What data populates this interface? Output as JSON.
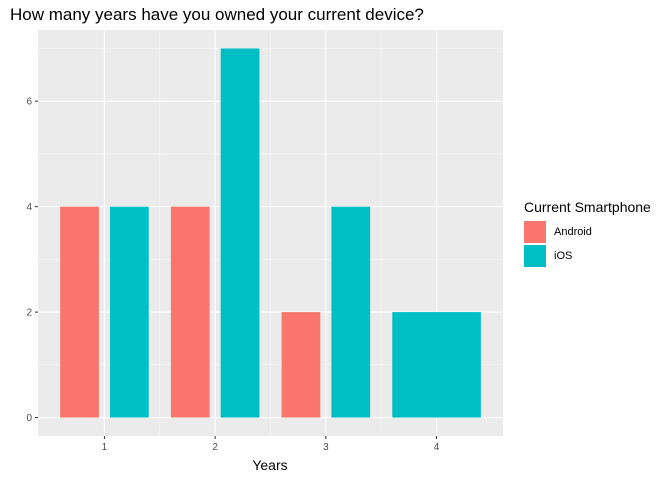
{
  "chart_data": {
    "type": "bar",
    "title": "How many years have you owned your current device?",
    "xlabel": "Years",
    "ylabel": "",
    "categories": [
      "1",
      "2",
      "3",
      "4"
    ],
    "yticks": [
      0,
      2,
      4,
      6
    ],
    "ylim": [
      -0.35,
      7.35
    ],
    "grid": true,
    "legend": {
      "title": "Current Smartphone",
      "placement": "right",
      "entries": [
        {
          "name": "Android",
          "color": "#F8766D"
        },
        {
          "name": "iOS",
          "color": "#00BFC4"
        }
      ]
    },
    "series": [
      {
        "name": "Android",
        "color": "#F8766D",
        "values": [
          4,
          4,
          2,
          null
        ]
      },
      {
        "name": "iOS",
        "color": "#00BFC4",
        "values": [
          4,
          7,
          4,
          2
        ]
      }
    ]
  }
}
